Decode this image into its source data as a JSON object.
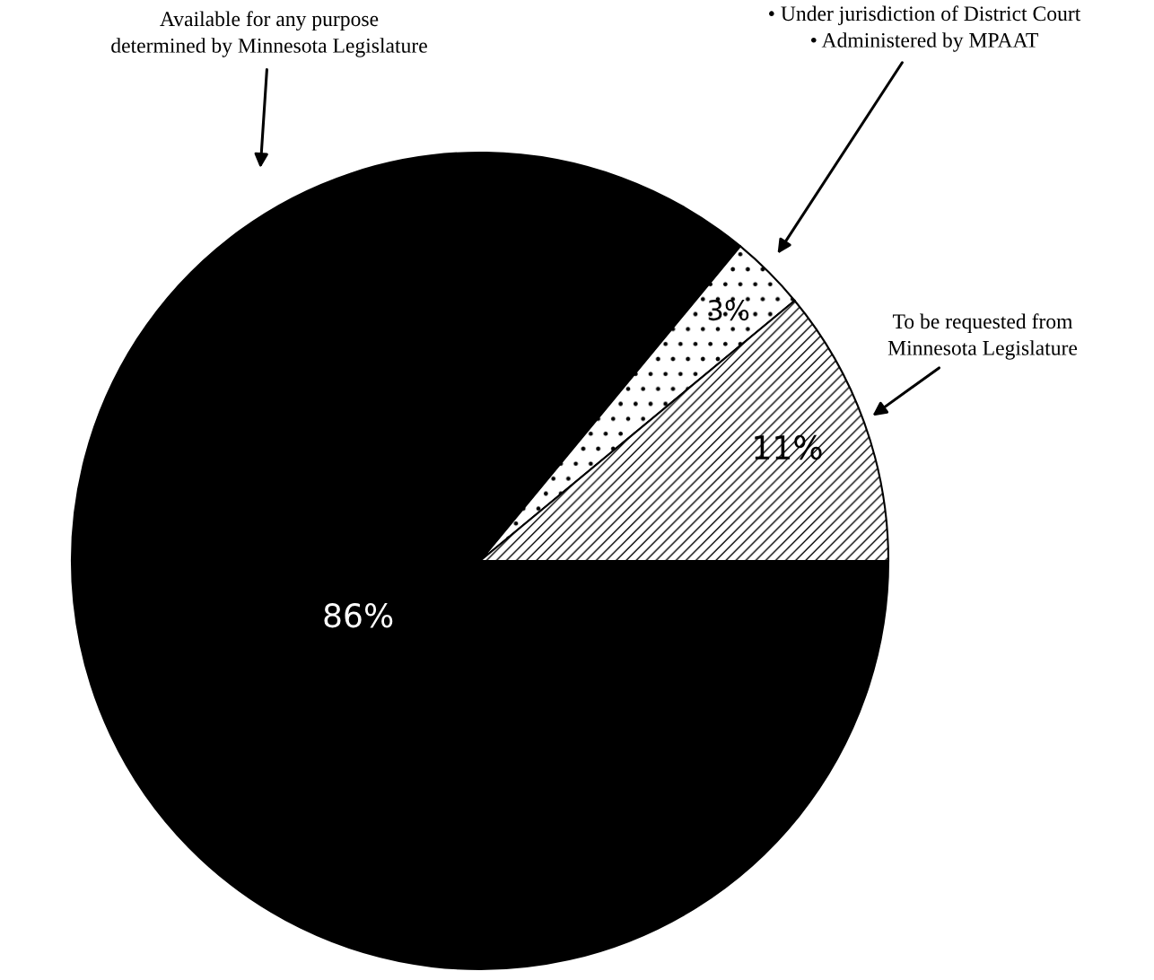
{
  "chart_data": {
    "type": "pie",
    "categories": [
      "Available for any purpose\ndetermined by Minnesota Legislature",
      "• Under jurisdiction of District Court\n• Administered by MPAAT",
      "To be requested from\nMinnesota Legislature"
    ],
    "values": [
      86,
      3,
      11
    ],
    "colors": [
      "#000000",
      "#ffffff",
      "#ffffff"
    ],
    "value_labels": [
      "86%",
      "3%",
      "11%"
    ],
    "legend": false
  }
}
